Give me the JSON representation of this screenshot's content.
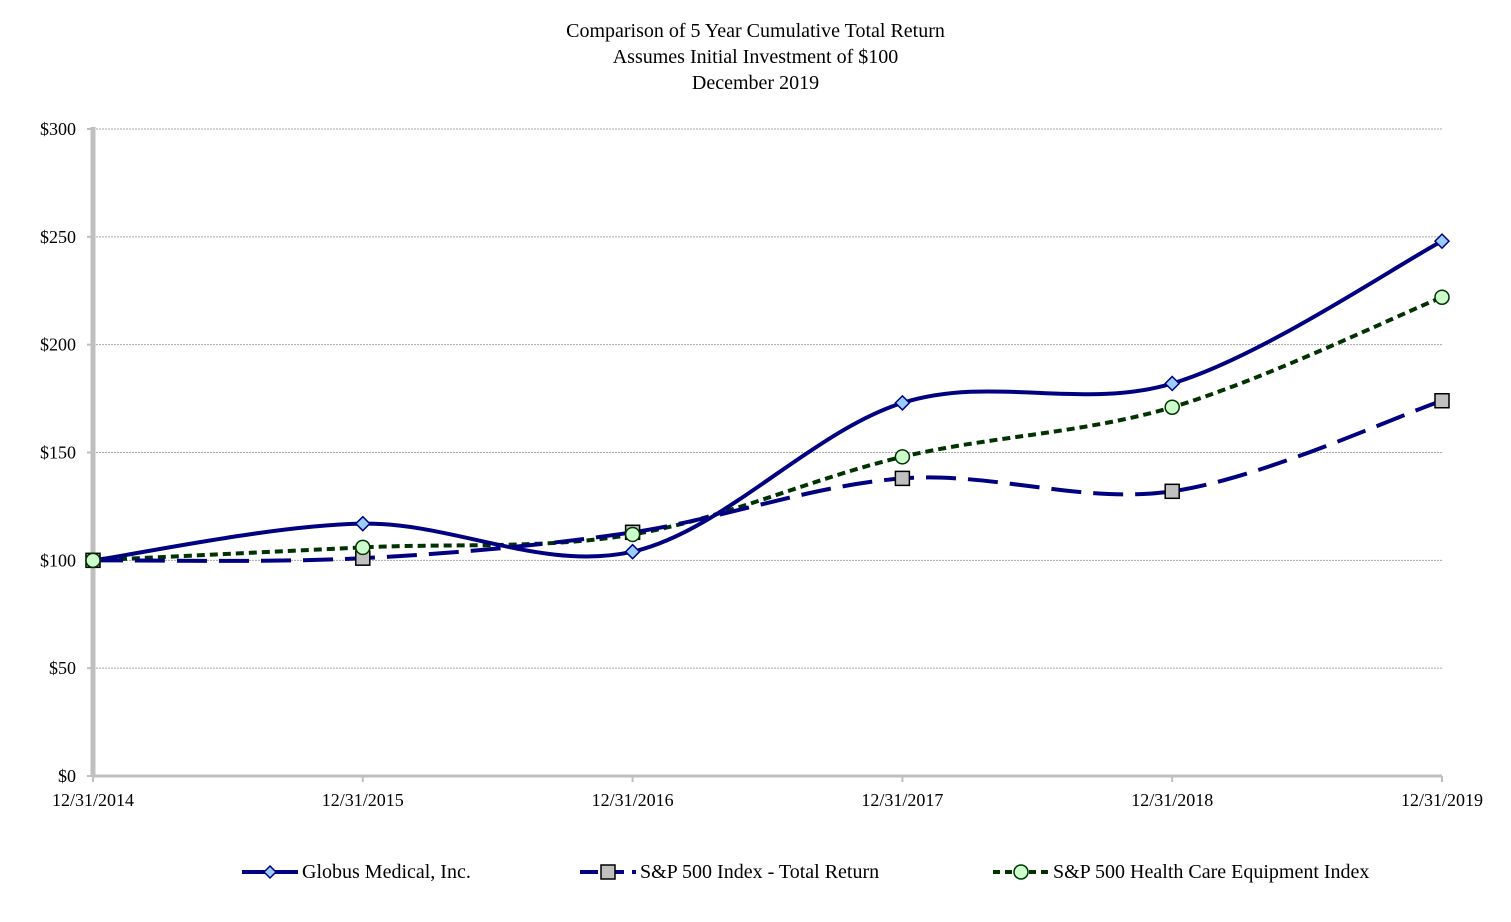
{
  "chart_data": {
    "type": "line",
    "title_lines": [
      "Comparison of 5 Year Cumulative Total Return",
      "Assumes Initial Investment of $100",
      "December 2019"
    ],
    "x": [
      "12/31/2014",
      "12/31/2015",
      "12/31/2016",
      "12/31/2017",
      "12/31/2018",
      "12/31/2019"
    ],
    "y_ticks": [
      0,
      50,
      100,
      150,
      200,
      250,
      300
    ],
    "y_tick_labels": [
      "$0",
      "$50",
      "$100",
      "$150",
      "$200",
      "$250",
      "$300"
    ],
    "ylim": [
      0,
      300
    ],
    "grid": "horizontal",
    "legend_position": "bottom",
    "series": [
      {
        "name": "Globus Medical, Inc.",
        "values": [
          100,
          117,
          104,
          173,
          182,
          248
        ],
        "color": "#000080",
        "line_style": "solid",
        "marker": "diamond",
        "marker_fill": "#99ccff"
      },
      {
        "name": "S&P 500 Index - Total Return",
        "values": [
          100,
          101,
          113,
          138,
          132,
          174
        ],
        "color": "#000080",
        "line_style": "long-dash",
        "marker": "square",
        "marker_fill": "#c0c0c0"
      },
      {
        "name": "S&P 500 Health Care Equipment Index",
        "values": [
          100,
          106,
          112,
          148,
          171,
          222
        ],
        "color": "#003300",
        "line_style": "short-dash",
        "marker": "circle",
        "marker_fill": "#ccffcc"
      }
    ]
  }
}
